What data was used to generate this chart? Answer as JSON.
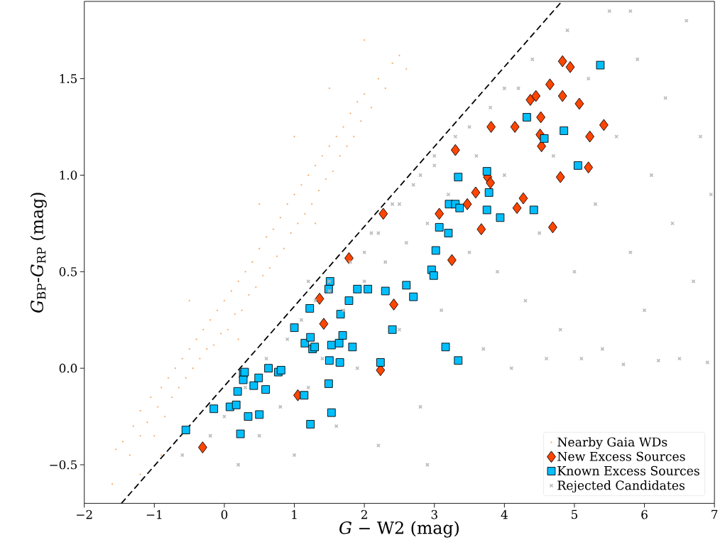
{
  "chart_data": {
    "type": "scatter",
    "xlabel": "*G* − W2 (mag)",
    "ylabel": "*G*$_{BP}$-*G*$_{RP}$ (mag)",
    "xlim": [
      -2,
      7
    ],
    "ylim": [
      -0.7,
      1.9
    ],
    "xticks": [
      {
        "value": -2,
        "label": "−2"
      },
      {
        "value": -1,
        "label": "−1"
      },
      0,
      1,
      2,
      3,
      4,
      5,
      6,
      7
    ],
    "yticks": [
      {
        "value": -0.5,
        "label": "−0.5"
      },
      {
        "value": 0,
        "label": "0.0"
      },
      0.5,
      {
        "value": 1,
        "label": "1.0"
      },
      1.5
    ],
    "legend": "bottom right",
    "grid": false,
    "series": [
      {
        "name": "Nearby Gaia WDs",
        "color": "#f4a460",
        "marker": "circle",
        "x": [
          -1.55,
          -1.45,
          -1.35,
          -1.3,
          -1.2,
          -1.2,
          -1.1,
          -1.05,
          -1.0,
          -0.95,
          -0.9,
          -0.85,
          -0.8,
          -0.75,
          -0.7,
          -0.65,
          -0.6,
          -0.55,
          -0.5,
          -0.45,
          -0.4,
          -0.35,
          -0.3,
          -0.25,
          -0.2,
          -0.15,
          -0.1,
          -0.05,
          0.0,
          0.05,
          0.1,
          0.15,
          0.2,
          0.25,
          0.3,
          0.35,
          0.4,
          0.45,
          0.5,
          0.55,
          0.6,
          0.65,
          0.7,
          0.75,
          0.8,
          0.85,
          0.9,
          0.95,
          1.0,
          1.05,
          1.1,
          1.15,
          1.2,
          1.25,
          1.3,
          1.35,
          1.4,
          1.45,
          1.5,
          1.55,
          1.6,
          1.65,
          1.7,
          1.75,
          1.8,
          1.85,
          1.9,
          1.95,
          2.0,
          2.1,
          2.2,
          2.3,
          2.4,
          2.5,
          2.6,
          1.0,
          0.5,
          -0.5,
          1.5,
          -1.2,
          2.0,
          -1.6,
          0.2,
          1.3,
          -0.9
        ],
        "values": [
          -0.42,
          -0.38,
          -0.45,
          -0.3,
          -0.35,
          -0.22,
          -0.28,
          -0.15,
          -0.35,
          -0.2,
          -0.1,
          -0.25,
          -0.05,
          -0.15,
          0.0,
          -0.1,
          0.05,
          -0.05,
          0.1,
          0.0,
          0.15,
          0.05,
          0.2,
          0.1,
          0.25,
          0.12,
          0.3,
          0.18,
          0.35,
          0.2,
          0.4,
          0.28,
          0.45,
          0.3,
          0.5,
          0.38,
          0.55,
          0.42,
          0.62,
          0.48,
          0.68,
          0.52,
          0.72,
          0.58,
          0.78,
          0.62,
          0.85,
          0.7,
          0.9,
          0.75,
          0.95,
          0.8,
          1.0,
          0.85,
          1.05,
          0.92,
          1.1,
          0.98,
          1.15,
          1.02,
          1.2,
          1.1,
          1.25,
          1.15,
          1.32,
          1.2,
          1.38,
          1.28,
          1.42,
          1.35,
          1.5,
          1.45,
          1.58,
          1.62,
          1.55,
          1.2,
          0.85,
          0.35,
          1.45,
          -0.55,
          1.7,
          -0.6,
          0.15,
          0.75,
          -0.45
        ]
      },
      {
        "name": "New Excess Sources",
        "color": "#ff4500",
        "marker": "diamond",
        "x": [
          -0.31,
          1.05,
          1.36,
          1.42,
          1.78,
          2.23,
          2.27,
          2.42,
          3.07,
          3.25,
          3.3,
          3.47,
          3.59,
          3.67,
          3.76,
          3.8,
          3.81,
          4.15,
          4.18,
          4.27,
          4.37,
          4.45,
          4.51,
          4.52,
          4.53,
          4.65,
          4.69,
          4.8,
          4.83,
          4.83,
          4.94,
          5.07,
          5.2,
          5.22,
          5.42
        ],
        "values": [
          -0.41,
          -0.14,
          0.36,
          0.23,
          0.57,
          -0.01,
          0.8,
          0.33,
          0.8,
          0.56,
          1.13,
          0.85,
          0.91,
          0.72,
          0.99,
          0.96,
          1.25,
          1.25,
          0.83,
          0.88,
          1.39,
          1.41,
          1.21,
          1.3,
          1.15,
          1.47,
          0.73,
          0.99,
          1.59,
          1.41,
          1.56,
          1.37,
          1.04,
          1.2,
          1.26
        ]
      },
      {
        "name": "Known Excess Sources",
        "color": "#00bfff",
        "marker": "square",
        "x": [
          -0.55,
          -0.15,
          0.08,
          0.17,
          0.23,
          0.34,
          0.5,
          0.19,
          0.27,
          0.27,
          0.29,
          0.42,
          0.49,
          0.59,
          0.63,
          0.77,
          0.81,
          1.23,
          1.14,
          1.53,
          1.49,
          1.65,
          1.5,
          1.0,
          1.15,
          1.23,
          1.26,
          1.29,
          1.53,
          1.64,
          1.69,
          1.83,
          1.66,
          1.22,
          1.78,
          1.49,
          1.51,
          1.9,
          2.05,
          2.3,
          2.4,
          2.23,
          3.75,
          3.34,
          3.78,
          3.21,
          3.3,
          3.36,
          3.75,
          3.94,
          3.07,
          3.2,
          3.02,
          2.96,
          2.99,
          2.6,
          2.7,
          3.16,
          3.34,
          5.37,
          4.32,
          4.57,
          4.85,
          5.05,
          4.42
        ],
        "values": [
          -0.32,
          -0.21,
          -0.2,
          -0.19,
          -0.34,
          -0.25,
          -0.24,
          -0.12,
          -0.03,
          -0.06,
          -0.02,
          -0.09,
          -0.05,
          -0.11,
          0.0,
          -0.02,
          -0.01,
          -0.29,
          -0.14,
          -0.23,
          -0.08,
          0.03,
          0.04,
          0.21,
          0.13,
          0.16,
          0.1,
          0.11,
          0.12,
          0.13,
          0.17,
          0.11,
          0.28,
          0.31,
          0.35,
          0.41,
          0.45,
          0.41,
          0.41,
          0.4,
          0.2,
          0.03,
          1.02,
          0.99,
          0.91,
          0.85,
          0.85,
          0.83,
          0.82,
          0.78,
          0.73,
          0.7,
          0.61,
          0.51,
          0.48,
          0.43,
          0.37,
          0.11,
          0.04,
          1.57,
          1.3,
          1.19,
          1.23,
          1.05,
          0.82
        ]
      },
      {
        "name": "Rejected Candidates",
        "color": "#bbbbbb",
        "marker": "cross",
        "x": [
          -0.6,
          -0.2,
          0.0,
          0.2,
          0.3,
          0.5,
          0.6,
          0.8,
          0.9,
          1.0,
          1.1,
          1.2,
          1.3,
          1.4,
          1.5,
          1.6,
          1.7,
          1.8,
          1.9,
          2.0,
          2.1,
          2.2,
          2.3,
          2.4,
          2.5,
          2.6,
          2.7,
          2.8,
          2.9,
          3.0,
          3.1,
          3.2,
          3.3,
          2.9,
          3.5,
          3.6,
          3.7,
          3.8,
          3.9,
          4.0,
          4.1,
          4.2,
          4.3,
          4.4,
          4.5,
          4.6,
          4.7,
          4.8,
          4.9,
          5.0,
          5.1,
          5.2,
          5.3,
          5.4,
          5.5,
          5.6,
          5.7,
          5.8,
          5.9,
          6.0,
          6.1,
          6.2,
          6.3,
          6.4,
          6.5,
          6.6,
          6.7,
          6.8,
          6.9,
          6.95,
          2.0,
          2.5,
          3.0,
          1.5,
          2.8,
          3.5,
          4.0,
          1.2,
          2.2,
          5.8
        ],
        "values": [
          -0.45,
          -0.35,
          -0.25,
          -0.5,
          -0.1,
          -0.35,
          0.05,
          -0.2,
          0.15,
          -0.45,
          0.25,
          -0.1,
          0.35,
          0.05,
          0.45,
          -0.3,
          0.3,
          0.55,
          0.0,
          0.45,
          0.7,
          -0.4,
          0.55,
          0.85,
          0.2,
          0.65,
          0.95,
          -0.2,
          0.75,
          1.05,
          0.3,
          0.9,
          1.2,
          -0.5,
          0.6,
          1.1,
          0.1,
          1.35,
          0.5,
          1.0,
          0.0,
          1.45,
          0.35,
          1.6,
          0.7,
          0.05,
          1.1,
          0.2,
          1.75,
          0.5,
          0.05,
          1.5,
          0.85,
          0.1,
          1.85,
          1.2,
          0.02,
          0.6,
          1.6,
          0.3,
          1.0,
          0.04,
          1.4,
          0.75,
          0.05,
          1.8,
          0.45,
          1.2,
          0.03,
          0.9,
          0.6,
          0.85,
          1.1,
          0.4,
          1.0,
          1.25,
          1.45,
          0.45,
          0.7,
          1.85
        ]
      },
      {
        "type": "line",
        "color": "#000000",
        "line_style": "dashed",
        "marker": "none",
        "x": [
          -1.47,
          4.82
        ],
        "values": [
          -0.7,
          1.9
        ]
      }
    ]
  }
}
